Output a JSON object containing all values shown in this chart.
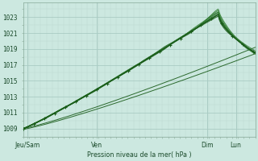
{
  "ylabel": "Pression niveau de la mer( hPa )",
  "yticks": [
    1009,
    1011,
    1013,
    1015,
    1017,
    1019,
    1021,
    1023
  ],
  "ylim": [
    1008.2,
    1024.8
  ],
  "xlim": [
    0,
    120
  ],
  "xtick_positions": [
    2,
    38,
    95,
    110
  ],
  "xtick_labels": [
    "Jeu/Sam",
    "Ven",
    "Dim",
    "Lun"
  ],
  "bg_color": "#cce8e0",
  "grid_color_major": "#aaccc4",
  "grid_color_minor": "#bcd9d2",
  "line_color_dark": "#1a5c1a",
  "line_color_mid": "#2d7a2d"
}
